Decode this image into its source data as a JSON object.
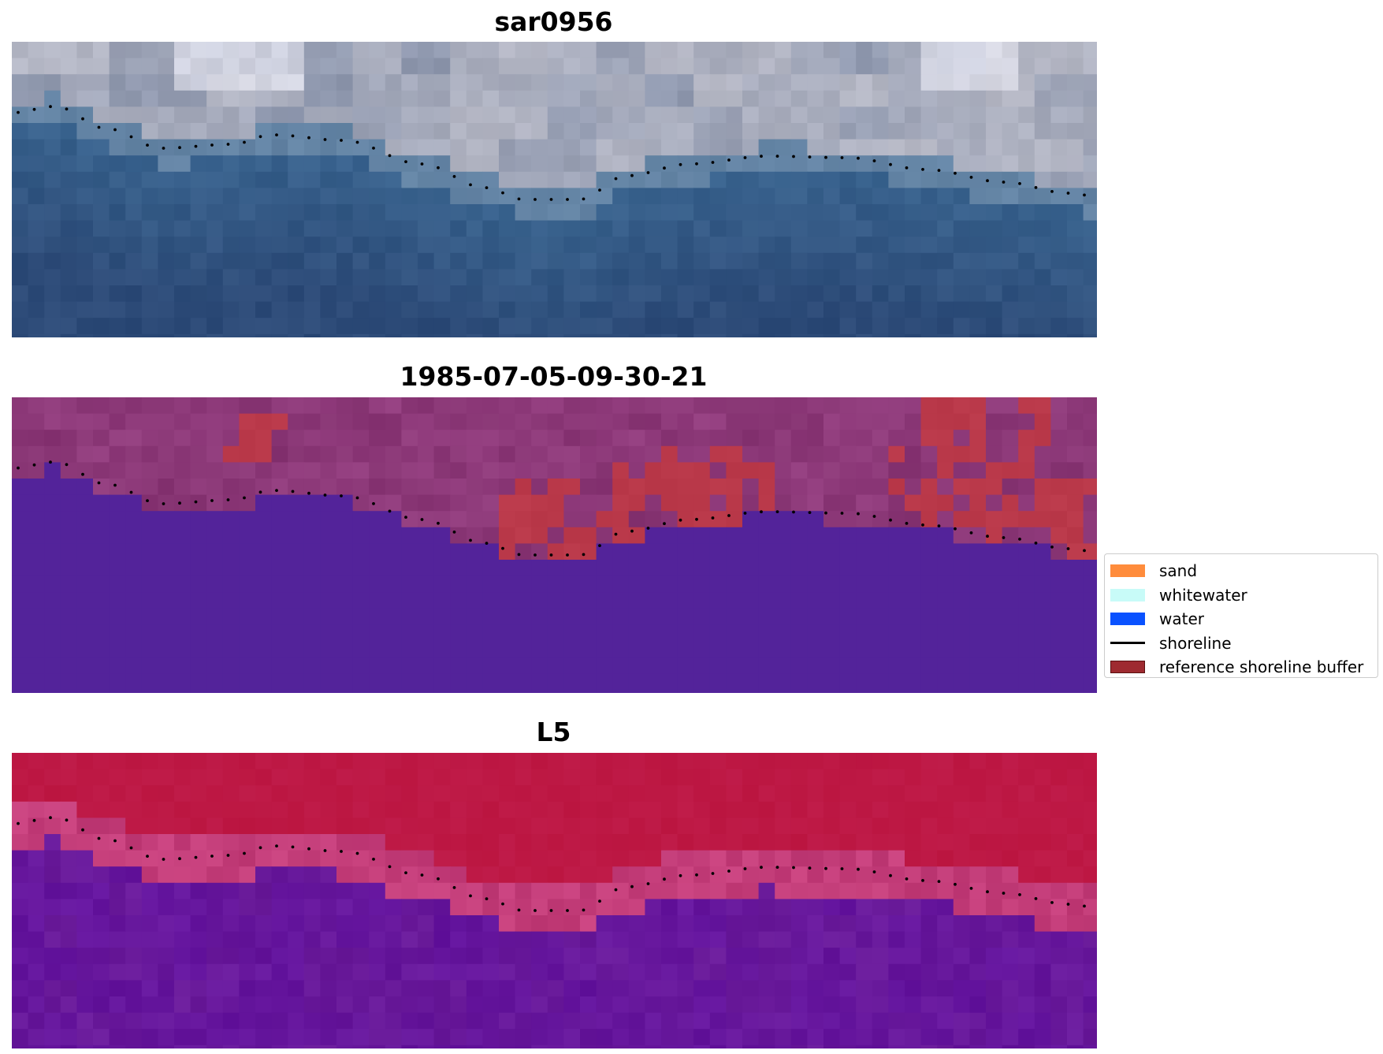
{
  "titles": {
    "panel1": "sar0956",
    "panel2": "1985-07-05-09-30-21",
    "panel3": "L5"
  },
  "legend": {
    "placement": "center-right",
    "items": [
      {
        "label": "sand",
        "kind": "patch",
        "color": "#ff8c3c",
        "edge": "#ff8c3c"
      },
      {
        "label": "whitewater",
        "kind": "patch",
        "color": "#c8fbf8",
        "edge": "#c8fbf8"
      },
      {
        "label": "water",
        "kind": "patch",
        "color": "#0a52ff",
        "edge": "#0a52ff"
      },
      {
        "label": "shoreline",
        "kind": "line",
        "color": "#000000"
      },
      {
        "label": "reference shoreline buffer",
        "kind": "patch",
        "color": "#9e2a30",
        "edge": "#5a1010"
      }
    ]
  },
  "colors": {
    "rgb_sand": "#b7b9c6",
    "rgb_water": "#3a6590",
    "class_land": "#943f80",
    "class_water": "#53239a",
    "class_buffer": "#b83748",
    "ndwi_land": "#bb1540",
    "ndwi_water": "#6a1b9a",
    "ndwi_edge": "#c74b8d"
  }
}
